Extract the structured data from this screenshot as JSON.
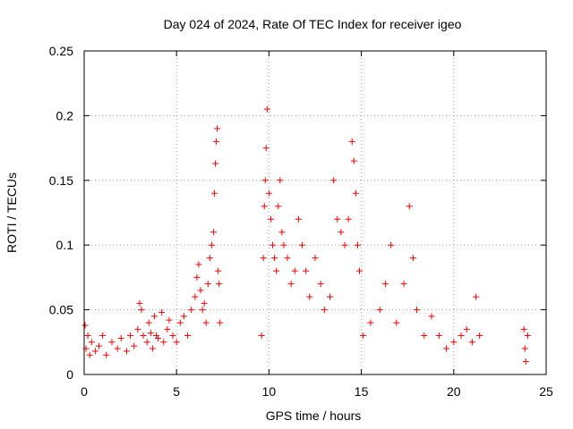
{
  "chart_data": {
    "type": "scatter",
    "title": "Day 024 of 2024, Rate Of TEC Index for receiver igeo",
    "xlabel": "GPS time / hours",
    "ylabel": "ROTI / TECUs",
    "xlim": [
      0,
      25
    ],
    "ylim": [
      0,
      0.25
    ],
    "x_ticks": [
      "0",
      "5",
      "10",
      "15",
      "20",
      "25"
    ],
    "y_ticks": [
      "0",
      "0.05",
      "0.1",
      "0.15",
      "0.2",
      "0.25"
    ],
    "x_tick_values": [
      0,
      5,
      10,
      15,
      20,
      25
    ],
    "y_tick_values": [
      0,
      0.05,
      0.1,
      0.15,
      0.2,
      0.25
    ],
    "grid": true,
    "marker": "+",
    "series": [
      {
        "name": "ROTI",
        "color": "#ff0000",
        "points": [
          [
            0.05,
            0.038
          ],
          [
            0.1,
            0.02
          ],
          [
            0.2,
            0.03
          ],
          [
            0.3,
            0.015
          ],
          [
            0.4,
            0.025
          ],
          [
            0.6,
            0.018
          ],
          [
            0.8,
            0.022
          ],
          [
            1.0,
            0.03
          ],
          [
            1.2,
            0.015
          ],
          [
            1.5,
            0.025
          ],
          [
            1.8,
            0.02
          ],
          [
            2.0,
            0.028
          ],
          [
            2.3,
            0.018
          ],
          [
            2.5,
            0.03
          ],
          [
            2.7,
            0.022
          ],
          [
            2.9,
            0.035
          ],
          [
            3.0,
            0.055
          ],
          [
            3.1,
            0.05
          ],
          [
            3.2,
            0.03
          ],
          [
            3.4,
            0.025
          ],
          [
            3.5,
            0.04
          ],
          [
            3.6,
            0.032
          ],
          [
            3.7,
            0.02
          ],
          [
            3.8,
            0.045
          ],
          [
            3.9,
            0.03
          ],
          [
            4.0,
            0.028
          ],
          [
            4.2,
            0.048
          ],
          [
            4.3,
            0.025
          ],
          [
            4.5,
            0.035
          ],
          [
            4.6,
            0.042
          ],
          [
            4.8,
            0.03
          ],
          [
            5.0,
            0.025
          ],
          [
            5.2,
            0.04
          ],
          [
            5.4,
            0.045
          ],
          [
            5.6,
            0.03
          ],
          [
            5.8,
            0.05
          ],
          [
            6.0,
            0.06
          ],
          [
            6.1,
            0.075
          ],
          [
            6.2,
            0.085
          ],
          [
            6.3,
            0.065
          ],
          [
            6.4,
            0.05
          ],
          [
            6.5,
            0.055
          ],
          [
            6.6,
            0.04
          ],
          [
            6.7,
            0.07
          ],
          [
            6.8,
            0.09
          ],
          [
            6.9,
            0.1
          ],
          [
            7.0,
            0.11
          ],
          [
            7.05,
            0.14
          ],
          [
            7.1,
            0.163
          ],
          [
            7.15,
            0.18
          ],
          [
            7.2,
            0.19
          ],
          [
            7.25,
            0.08
          ],
          [
            7.3,
            0.07
          ],
          [
            7.35,
            0.04
          ],
          [
            9.6,
            0.03
          ],
          [
            9.7,
            0.09
          ],
          [
            9.75,
            0.13
          ],
          [
            9.8,
            0.15
          ],
          [
            9.85,
            0.175
          ],
          [
            9.9,
            0.205
          ],
          [
            10.0,
            0.14
          ],
          [
            10.1,
            0.12
          ],
          [
            10.2,
            0.1
          ],
          [
            10.3,
            0.09
          ],
          [
            10.4,
            0.08
          ],
          [
            10.5,
            0.13
          ],
          [
            10.6,
            0.15
          ],
          [
            10.7,
            0.11
          ],
          [
            10.8,
            0.1
          ],
          [
            11.0,
            0.09
          ],
          [
            11.2,
            0.07
          ],
          [
            11.4,
            0.08
          ],
          [
            11.6,
            0.12
          ],
          [
            11.8,
            0.1
          ],
          [
            12.0,
            0.08
          ],
          [
            12.2,
            0.06
          ],
          [
            12.5,
            0.09
          ],
          [
            12.8,
            0.07
          ],
          [
            13.0,
            0.05
          ],
          [
            13.3,
            0.06
          ],
          [
            13.5,
            0.15
          ],
          [
            13.7,
            0.12
          ],
          [
            13.9,
            0.11
          ],
          [
            14.1,
            0.1
          ],
          [
            14.3,
            0.12
          ],
          [
            14.5,
            0.18
          ],
          [
            14.6,
            0.165
          ],
          [
            14.7,
            0.14
          ],
          [
            14.8,
            0.1
          ],
          [
            14.9,
            0.08
          ],
          [
            15.1,
            0.03
          ],
          [
            15.5,
            0.04
          ],
          [
            16.0,
            0.05
          ],
          [
            16.3,
            0.07
          ],
          [
            16.6,
            0.1
          ],
          [
            16.9,
            0.04
          ],
          [
            17.3,
            0.07
          ],
          [
            17.6,
            0.13
          ],
          [
            17.8,
            0.09
          ],
          [
            18.0,
            0.05
          ],
          [
            18.4,
            0.03
          ],
          [
            18.8,
            0.045
          ],
          [
            19.2,
            0.03
          ],
          [
            19.6,
            0.02
          ],
          [
            20.0,
            0.025
          ],
          [
            20.4,
            0.03
          ],
          [
            20.7,
            0.035
          ],
          [
            21.0,
            0.025
          ],
          [
            21.2,
            0.06
          ],
          [
            21.4,
            0.03
          ],
          [
            23.8,
            0.035
          ],
          [
            23.85,
            0.02
          ],
          [
            23.9,
            0.01
          ],
          [
            24.0,
            0.03
          ]
        ]
      }
    ]
  }
}
